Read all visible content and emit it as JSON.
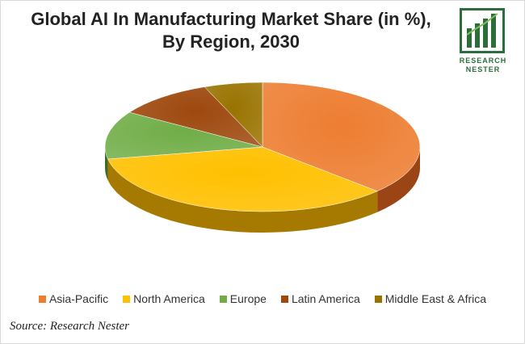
{
  "title_line1": "Global AI In Manufacturing Market Share (in %),",
  "title_line2": "By Region, 2030",
  "logo": {
    "line1": "RESEARCH",
    "line2": "NESTER",
    "color": "#2c6e3a"
  },
  "source": "Source: Research Nester",
  "chart_data": {
    "type": "pie",
    "title": "Global AI In Manufacturing Market Share (in %), By Region, 2030",
    "three_d": true,
    "legend_position": "bottom",
    "series": [
      {
        "name": "Asia-Pacific",
        "value": 37,
        "color": "#ed7d31",
        "side": "#9b4516"
      },
      {
        "name": "North America",
        "value": 35,
        "color": "#ffc000",
        "side": "#a67a00"
      },
      {
        "name": "Europe",
        "value": 12,
        "color": "#70ad47",
        "side": "#3f6b25"
      },
      {
        "name": "Latin America",
        "value": 10,
        "color": "#9e480e",
        "side": "#5c2906"
      },
      {
        "name": "Middle East & Africa",
        "value": 6,
        "color": "#997300",
        "side": "#5a4400"
      }
    ]
  }
}
